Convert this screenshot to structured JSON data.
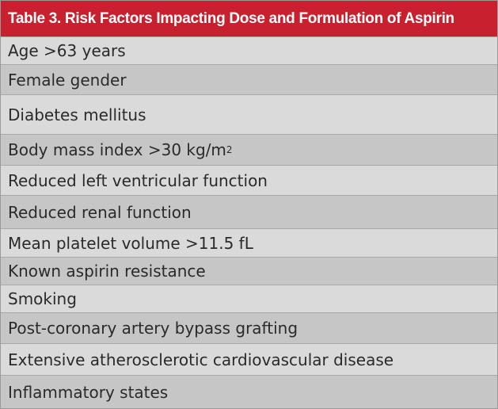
{
  "table": {
    "title": "Table 3. Risk Factors Impacting Dose and Formulation of Aspirin",
    "rows": [
      {
        "text": "Age >63 years"
      },
      {
        "text": "Female gender"
      },
      {
        "text": "Diabetes mellitus"
      },
      {
        "text": "Body mass index >30 kg/m",
        "sup": "2"
      },
      {
        "text": "Reduced left ventricular function"
      },
      {
        "text": "Reduced renal function"
      },
      {
        "text": "Mean platelet volume >11.5 fL"
      },
      {
        "text": "Known aspirin resistance"
      },
      {
        "text": "Smoking"
      },
      {
        "text": "Post-coronary artery bypass grafting"
      },
      {
        "text": "Extensive atherosclerotic cardiovascular disease"
      },
      {
        "text": "Inflammatory states"
      }
    ]
  }
}
